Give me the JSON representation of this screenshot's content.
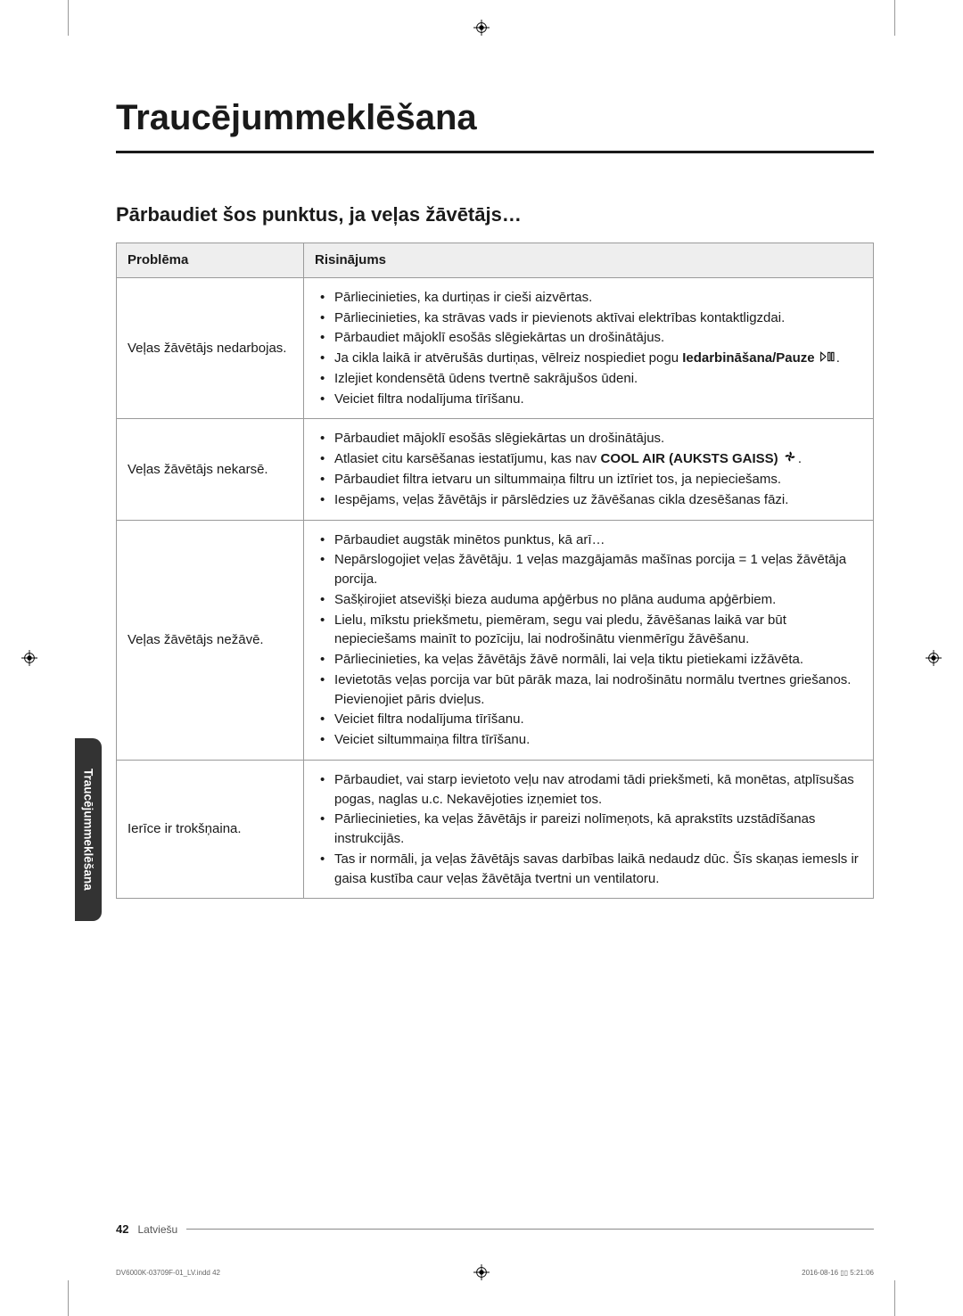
{
  "title": "Traucējummeklēšana",
  "subtitle": "Pārbaudiet šos punktus, ja veļas žāvētājs…",
  "sideTab": "Traucējummeklēšana",
  "headers": {
    "problem": "Problēma",
    "solution": "Risinājums"
  },
  "rows": [
    {
      "problem": "Veļas žāvētājs nedarbojas.",
      "items": [
        "Pārliecinieties, ka durtiņas ir cieši aizvērtas.",
        "Pārliecinieties, ka strāvas vads ir pievienots aktīvai elektrības kontaktligzdai.",
        "Pārbaudiet mājoklī esošās slēgiekārtas un drošinātājus.",
        {
          "pre": "Ja cikla laikā ir atvērušās durtiņas, vēlreiz nospiediet pogu ",
          "bold": "Iedarbināšana/Pauze",
          "icon": "play-pause",
          "post": "."
        },
        "Izlejiet kondensētā ūdens tvertnē sakrājušos ūdeni.",
        "Veiciet filtra nodalījuma tīrīšanu."
      ]
    },
    {
      "problem": "Veļas žāvētājs nekarsē.",
      "items": [
        "Pārbaudiet mājoklī esošās slēgiekārtas un drošinātājus.",
        {
          "pre": "Atlasiet citu karsēšanas iestatījumu, kas nav ",
          "bold": "COOL AIR (AUKSTS GAISS)",
          "icon": "fan",
          "post": "."
        },
        "Pārbaudiet filtra ietvaru un siltummaiņa filtru un iztīriet tos, ja nepieciešams.",
        "Iespējams, veļas žāvētājs ir pārslēdzies uz žāvēšanas cikla dzesēšanas fāzi."
      ]
    },
    {
      "problem": "Veļas žāvētājs nežāvē.",
      "items": [
        "Pārbaudiet augstāk minētos punktus, kā arī…",
        "Nepārslogojiet veļas žāvētāju. 1 veļas mazgājamās mašīnas porcija = 1 veļas žāvētāja porcija.",
        "Sašķirojiet atsevišķi bieza auduma apģērbus no plāna auduma apģērbiem.",
        "Lielu, mīkstu priekšmetu, piemēram, segu vai pledu, žāvēšanas laikā var būt nepieciešams mainīt to pozīciju, lai nodrošinātu vienmērīgu žāvēšanu.",
        "Pārliecinieties, ka veļas žāvētājs žāvē normāli, lai veļa tiktu pietiekami izžāvēta.",
        "Ievietotās veļas porcija var būt pārāk maza, lai nodrošinātu normālu tvertnes griešanos. Pievienojiet pāris dvieļus.",
        "Veiciet filtra nodalījuma tīrīšanu.",
        "Veiciet siltummaiņa filtra tīrīšanu."
      ]
    },
    {
      "problem": "Ierīce ir trokšņaina.",
      "items": [
        "Pārbaudiet, vai starp ievietoto veļu nav atrodami tādi priekšmeti, kā monētas, atplīsušas pogas, naglas u.c. Nekavējoties izņemiet tos.",
        "Pārliecinieties, ka veļas žāvētājs ir pareizi nolīmeņots, kā aprakstīts uzstādīšanas instrukcijās.",
        "Tas ir normāli, ja veļas žāvētājs savas darbības laikā nedaudz dūc. Šīs skaņas iemesls ir gaisa kustība caur veļas žāvētāja tvertni un ventilatoru."
      ]
    }
  ],
  "footer": {
    "pageNum": "42",
    "lang": "Latviešu"
  },
  "meta": {
    "left": "DV6000K-03709F-01_LV.indd   42",
    "right": "2016-08-16   ▯▯ 5:21:06"
  }
}
